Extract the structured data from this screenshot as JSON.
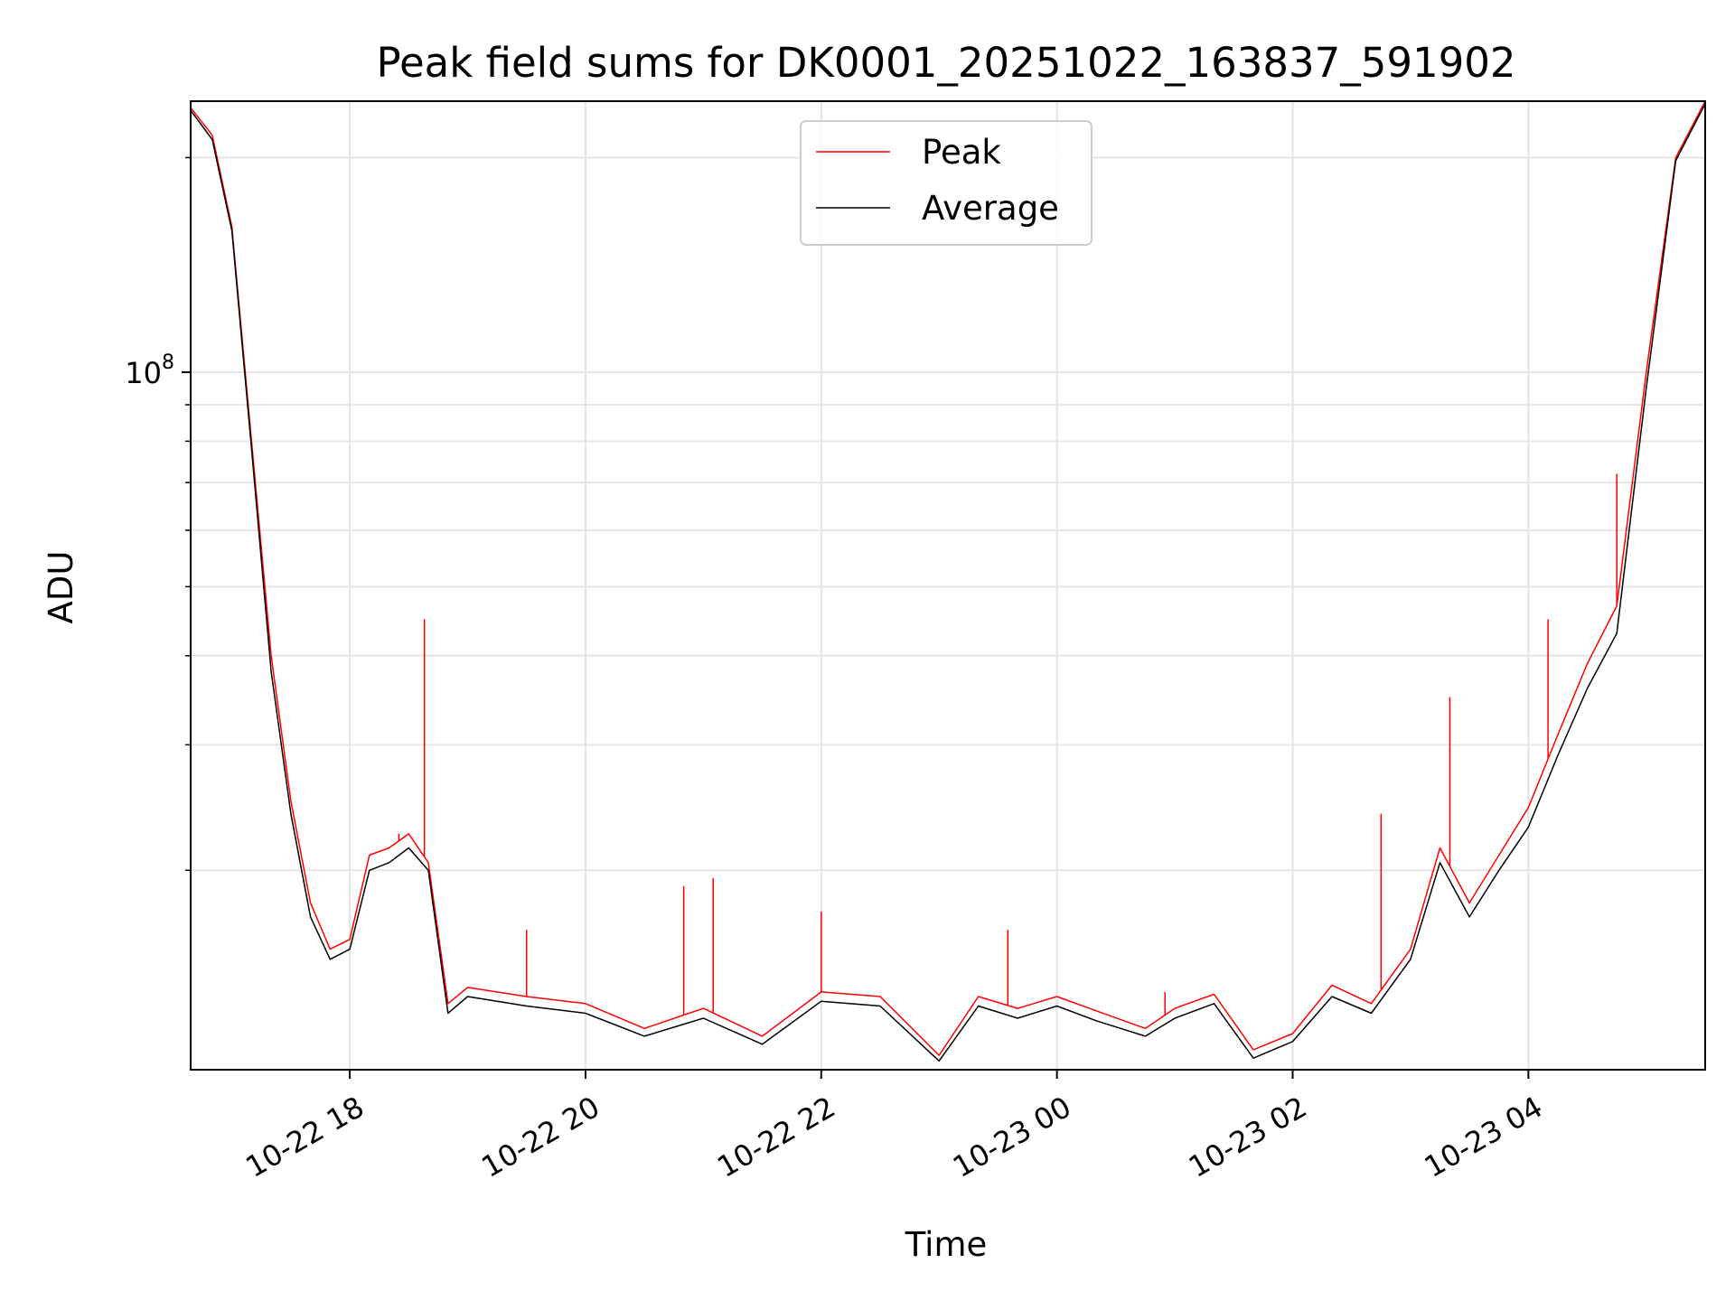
{
  "chart_data": {
    "type": "line",
    "title": "Peak field sums for DK0001_20251022_163837_591902",
    "xlabel": "Time",
    "ylabel": "ADU",
    "yscale": "log",
    "ylim": [
      10500000,
      240000000
    ],
    "xlim": [
      "2025-10-22 16:39",
      "2025-10-23 05:30"
    ],
    "grid": true,
    "legend_position": "upper center",
    "x_tick_labels": [
      "10-22 18",
      "10-22 20",
      "10-22 22",
      "10-23 00",
      "10-23 02",
      "10-23 04"
    ],
    "x_ticks": [
      "2025-10-22 18:00",
      "2025-10-22 20:00",
      "2025-10-22 22:00",
      "2025-10-23 00:00",
      "2025-10-23 02:00",
      "2025-10-23 04:00"
    ],
    "y_tick_major_label_base": "10",
    "y_tick_major_label_exp": "8",
    "y_tick_major": 100000000,
    "y_tick_minor": [
      20000000,
      30000000,
      40000000,
      50000000,
      60000000,
      70000000,
      80000000,
      90000000,
      200000000
    ],
    "series": [
      {
        "name": "Peak",
        "color": "#ff0000",
        "x": [
          "2025-10-22 16:39",
          "2025-10-22 16:50",
          "2025-10-22 17:00",
          "2025-10-22 17:10",
          "2025-10-22 17:20",
          "2025-10-22 17:30",
          "2025-10-22 17:40",
          "2025-10-22 17:50",
          "2025-10-22 18:00",
          "2025-10-22 18:10",
          "2025-10-22 18:20",
          "2025-10-22 18:30",
          "2025-10-22 18:40",
          "2025-10-22 18:50",
          "2025-10-22 19:00",
          "2025-10-22 19:30",
          "2025-10-22 20:00",
          "2025-10-22 20:30",
          "2025-10-22 21:00",
          "2025-10-22 21:30",
          "2025-10-22 22:00",
          "2025-10-22 22:30",
          "2025-10-22 23:00",
          "2025-10-22 23:20",
          "2025-10-22 23:40",
          "2025-10-23 00:00",
          "2025-10-23 00:20",
          "2025-10-23 00:45",
          "2025-10-23 01:00",
          "2025-10-23 01:20",
          "2025-10-23 01:40",
          "2025-10-23 02:00",
          "2025-10-23 02:20",
          "2025-10-23 02:40",
          "2025-10-23 03:00",
          "2025-10-23 03:15",
          "2025-10-23 03:30",
          "2025-10-23 03:45",
          "2025-10-23 04:00",
          "2025-10-23 04:15",
          "2025-10-23 04:30",
          "2025-10-23 04:45",
          "2025-10-23 05:00",
          "2025-10-23 05:15",
          "2025-10-23 05:30"
        ],
        "values": [
          235000000,
          215000000,
          160000000,
          80000000,
          40000000,
          25000000,
          18000000,
          15500000,
          16000000,
          21000000,
          21500000,
          22500000,
          20500000,
          13000000,
          13700000,
          13300000,
          13000000,
          12000000,
          12800000,
          11700000,
          13500000,
          13300000,
          11000000,
          13300000,
          12800000,
          13300000,
          12700000,
          12000000,
          12800000,
          13400000,
          11200000,
          11800000,
          13800000,
          13000000,
          15500000,
          21500000,
          18000000,
          21000000,
          24500000,
          31000000,
          39000000,
          47000000,
          100000000,
          200000000,
          240000000
        ],
        "spikes": [
          {
            "x": "2025-10-22 18:25",
            "value": 22500000
          },
          {
            "x": "2025-10-22 18:38",
            "value": 45000000
          },
          {
            "x": "2025-10-22 19:30",
            "value": 16500000
          },
          {
            "x": "2025-10-22 20:50",
            "value": 19000000
          },
          {
            "x": "2025-10-22 21:05",
            "value": 19500000
          },
          {
            "x": "2025-10-22 22:00",
            "value": 17500000
          },
          {
            "x": "2025-10-22 23:35",
            "value": 16500000
          },
          {
            "x": "2025-10-23 00:55",
            "value": 13500000
          },
          {
            "x": "2025-10-23 02:45",
            "value": 24000000
          },
          {
            "x": "2025-10-23 03:20",
            "value": 35000000
          },
          {
            "x": "2025-10-23 04:10",
            "value": 45000000
          },
          {
            "x": "2025-10-23 04:45",
            "value": 72000000
          }
        ]
      },
      {
        "name": "Average",
        "color": "#000000",
        "x": [
          "2025-10-22 16:39",
          "2025-10-22 16:50",
          "2025-10-22 17:00",
          "2025-10-22 17:10",
          "2025-10-22 17:20",
          "2025-10-22 17:30",
          "2025-10-22 17:40",
          "2025-10-22 17:50",
          "2025-10-22 18:00",
          "2025-10-22 18:10",
          "2025-10-22 18:20",
          "2025-10-22 18:30",
          "2025-10-22 18:40",
          "2025-10-22 18:50",
          "2025-10-22 19:00",
          "2025-10-22 19:30",
          "2025-10-22 20:00",
          "2025-10-22 20:30",
          "2025-10-22 21:00",
          "2025-10-22 21:30",
          "2025-10-22 22:00",
          "2025-10-22 22:30",
          "2025-10-22 23:00",
          "2025-10-22 23:20",
          "2025-10-22 23:40",
          "2025-10-23 00:00",
          "2025-10-23 00:20",
          "2025-10-23 00:45",
          "2025-10-23 01:00",
          "2025-10-23 01:20",
          "2025-10-23 01:40",
          "2025-10-23 02:00",
          "2025-10-23 02:20",
          "2025-10-23 02:40",
          "2025-10-23 03:00",
          "2025-10-23 03:15",
          "2025-10-23 03:30",
          "2025-10-23 03:45",
          "2025-10-23 04:00",
          "2025-10-23 04:15",
          "2025-10-23 04:30",
          "2025-10-23 04:45",
          "2025-10-23 05:00",
          "2025-10-23 05:15",
          "2025-10-23 05:30"
        ],
        "values": [
          233000000,
          212000000,
          158000000,
          78000000,
          38000000,
          24000000,
          17200000,
          15000000,
          15500000,
          20000000,
          20500000,
          21500000,
          20000000,
          12600000,
          13300000,
          12900000,
          12600000,
          11700000,
          12400000,
          11400000,
          13100000,
          12900000,
          10800000,
          12900000,
          12400000,
          12900000,
          12300000,
          11700000,
          12400000,
          13000000,
          10900000,
          11500000,
          13300000,
          12600000,
          15000000,
          20500000,
          17200000,
          20000000,
          23000000,
          29000000,
          36000000,
          43000000,
          95000000,
          198000000,
          238000000
        ]
      }
    ]
  }
}
